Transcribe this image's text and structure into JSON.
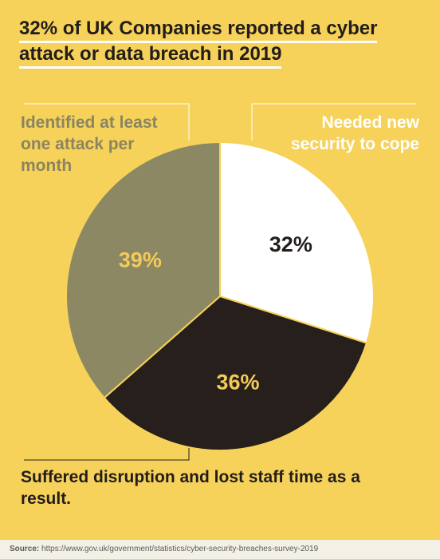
{
  "title_line1": "32% of UK Companies reported a cyber",
  "title_line2": "attack or data breach in 2019",
  "chart_data": {
    "type": "pie",
    "slices": [
      {
        "label": "Needed new security to cope",
        "value": 32,
        "display": "32%",
        "color": "#ffffff",
        "label_color": "#221d1b"
      },
      {
        "label": "Suffered disruption and lost staff time as a result.",
        "value": 36,
        "display": "36%",
        "color": "#261f1b",
        "label_color": "#f2cb59"
      },
      {
        "label": "Identified at least one attack per month",
        "value": 39,
        "display": "39%",
        "color": "#8c8863",
        "label_color": "#f2cb59"
      }
    ]
  },
  "callouts": {
    "left": "Identified at least one attack per month",
    "right": "Needed new security to cope",
    "bottom": "Suffered disruption and lost staff time as a result."
  },
  "source": {
    "label": "Source:",
    "url": "https://www.gov.uk/government/statistics/cyber-security-breaches-survey-2019"
  }
}
